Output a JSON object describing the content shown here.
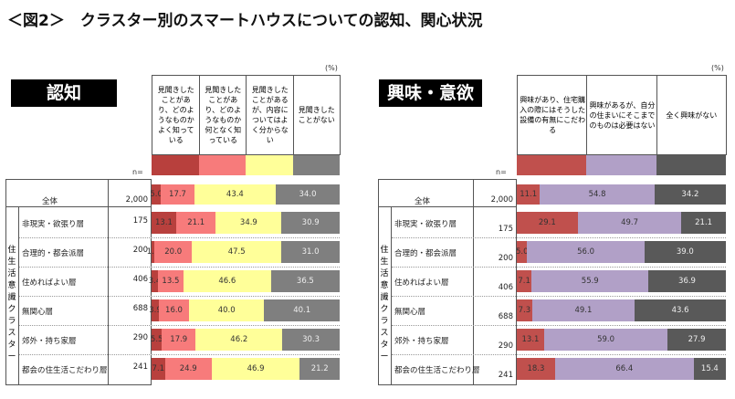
{
  "title": "＜図2＞　クラスター別のスマートハウスについての認知、関心状況",
  "group_label": "住生活意識クラスター",
  "n_label": "n=",
  "unit": "(%)",
  "rows": [
    {
      "label": "全体",
      "n": "2,000"
    },
    {
      "label": "非現実・欲張り層",
      "n": "175"
    },
    {
      "label": "合理的・都会派層",
      "n": "200"
    },
    {
      "label": "住めればよい層",
      "n": "406"
    },
    {
      "label": "無関心層",
      "n": "688"
    },
    {
      "label": "郊外・持ち家層",
      "n": "290"
    },
    {
      "label": "都会の住生活こだわり層",
      "n": "241"
    }
  ],
  "chart_data": [
    {
      "type": "bar",
      "orientation": "horizontal",
      "stacked": true,
      "title": "認知",
      "xlim": [
        0,
        100
      ],
      "categories": [
        "全体",
        "非現実・欲張り層",
        "合理的・都会派層",
        "住めればよい層",
        "無関心層",
        "郊外・持ち家層",
        "都会の住生活こだわり層"
      ],
      "series": [
        {
          "name": "見聞きしたことがあり、どのようなものかよく知っている",
          "color": "#b8403d",
          "values": [
            5.0,
            13.1,
            1.5,
            3.4,
            3.9,
            5.5,
            7.1
          ]
        },
        {
          "name": "見聞きしたことがあり、どのようなものか何となく知っている",
          "color": "#f77b7b",
          "values": [
            17.7,
            21.1,
            20.0,
            13.5,
            16.0,
            17.9,
            24.9
          ]
        },
        {
          "name": "見聞きしたことがあるが、内容についてはよく分からない",
          "color": "#ffff99",
          "values": [
            43.4,
            34.9,
            47.5,
            46.6,
            40.0,
            46.2,
            46.9
          ]
        },
        {
          "name": "見聞きしたことがない",
          "color": "#7f7f7f",
          "values": [
            34.0,
            30.9,
            31.0,
            36.5,
            40.1,
            30.3,
            21.2
          ]
        }
      ]
    },
    {
      "type": "bar",
      "orientation": "horizontal",
      "stacked": true,
      "title": "興味・意欲",
      "xlim": [
        0,
        100
      ],
      "categories": [
        "全体",
        "非現実・欲張り層",
        "合理的・都会派層",
        "住めればよい層",
        "無関心層",
        "郊外・持ち家層",
        "都会の住生活こだわり層"
      ],
      "series": [
        {
          "name": "興味があり、住宅購入の際にはそうした設備の有無にこだわる",
          "color": "#c0504d",
          "values": [
            11.1,
            29.1,
            5.0,
            7.1,
            7.3,
            13.1,
            18.3
          ]
        },
        {
          "name": "興味があるが、自分の住まいにそこまでのものは必要はない",
          "color": "#b1a0c7",
          "values": [
            54.8,
            49.7,
            56.0,
            55.9,
            49.1,
            59.0,
            66.4
          ]
        },
        {
          "name": "全く興味がない",
          "color": "#595959",
          "values": [
            34.2,
            21.1,
            39.0,
            36.9,
            43.6,
            27.9,
            15.4
          ]
        }
      ]
    }
  ]
}
